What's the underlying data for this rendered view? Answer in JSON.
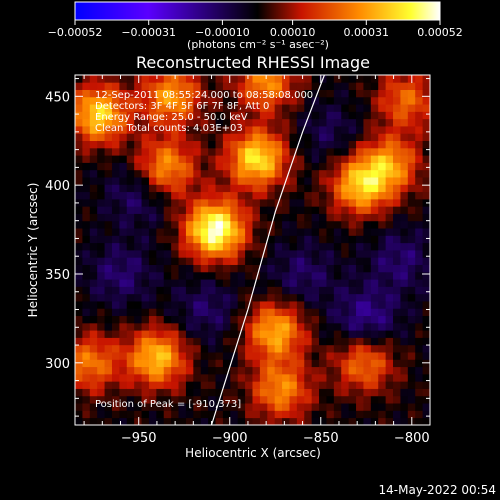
{
  "chart_data": {
    "type": "heatmap",
    "title": "Reconstructed RHESSI Image",
    "xlabel": "Heliocentric X (arcsec)",
    "ylabel": "Heliocentric Y (arcsec)",
    "xlim": [
      -985,
      -790
    ],
    "ylim": [
      265,
      462
    ],
    "x_ticks": [
      -950,
      -900,
      -850,
      -800
    ],
    "x_tick_labels": [
      "−950",
      "−900",
      "−850",
      "−800"
    ],
    "y_ticks": [
      300,
      350,
      400,
      450
    ],
    "y_tick_labels": [
      "300",
      "350",
      "400",
      "450"
    ],
    "colorbar": {
      "range": [
        -0.00052,
        0.00052
      ],
      "ticks": [
        -0.00052,
        -0.00031,
        -0.0001,
        0.0001,
        0.00031,
        0.00052
      ],
      "tick_labels": [
        "−0.00052",
        "−0.00031",
        "−0.00010",
        "0.00010",
        "0.00031",
        "0.00052"
      ],
      "unit_label": "(photons cm⁻² s⁻¹ asec⁻²)",
      "colormap": [
        "#0000ff",
        "#5a00ff",
        "#000000",
        "#c81400",
        "#ff8c00",
        "#ffff30",
        "#ffffff"
      ]
    },
    "info_lines": [
      "12-Sep-2011 08:55:24.000 to 08:58:08.000",
      "Detectors: 3F 4F 5F 6F 7F 8F, Att 0",
      "Energy Range: 25.0 - 50.0 keV",
      "Clean     Total counts: 4.03E+03"
    ],
    "peak_text": "Position of Peak = [-910,373]",
    "limb_curve": [
      [
        -910,
        265
      ],
      [
        -890,
        330
      ],
      [
        -875,
        385
      ],
      [
        -860,
        430
      ],
      [
        -848,
        462
      ]
    ],
    "bright_sources": [
      {
        "x": -908,
        "y": 375,
        "amp": 1.0
      },
      {
        "x": -885,
        "y": 415,
        "amp": 0.8
      },
      {
        "x": -935,
        "y": 410,
        "amp": 0.6
      },
      {
        "x": -972,
        "y": 440,
        "amp": 0.75
      },
      {
        "x": -932,
        "y": 450,
        "amp": 0.6
      },
      {
        "x": -880,
        "y": 458,
        "amp": 0.55
      },
      {
        "x": -828,
        "y": 400,
        "amp": 0.7
      },
      {
        "x": -812,
        "y": 412,
        "amp": 0.55
      },
      {
        "x": -940,
        "y": 303,
        "amp": 0.7
      },
      {
        "x": -977,
        "y": 300,
        "amp": 0.5
      },
      {
        "x": -875,
        "y": 318,
        "amp": 0.65
      },
      {
        "x": -872,
        "y": 285,
        "amp": 0.55
      },
      {
        "x": -826,
        "y": 300,
        "amp": 0.5
      },
      {
        "x": -803,
        "y": 448,
        "amp": 0.45
      }
    ],
    "negative_sources": [
      {
        "x": -950,
        "y": 395,
        "amp": 0.55
      },
      {
        "x": -960,
        "y": 350,
        "amp": 0.55
      },
      {
        "x": -913,
        "y": 330,
        "amp": 0.5
      },
      {
        "x": -860,
        "y": 350,
        "amp": 0.5
      },
      {
        "x": -825,
        "y": 325,
        "amp": 0.75
      },
      {
        "x": -806,
        "y": 358,
        "amp": 0.55
      },
      {
        "x": -845,
        "y": 430,
        "amp": 0.4
      }
    ]
  },
  "timestamp": "14-May-2022 00:54"
}
